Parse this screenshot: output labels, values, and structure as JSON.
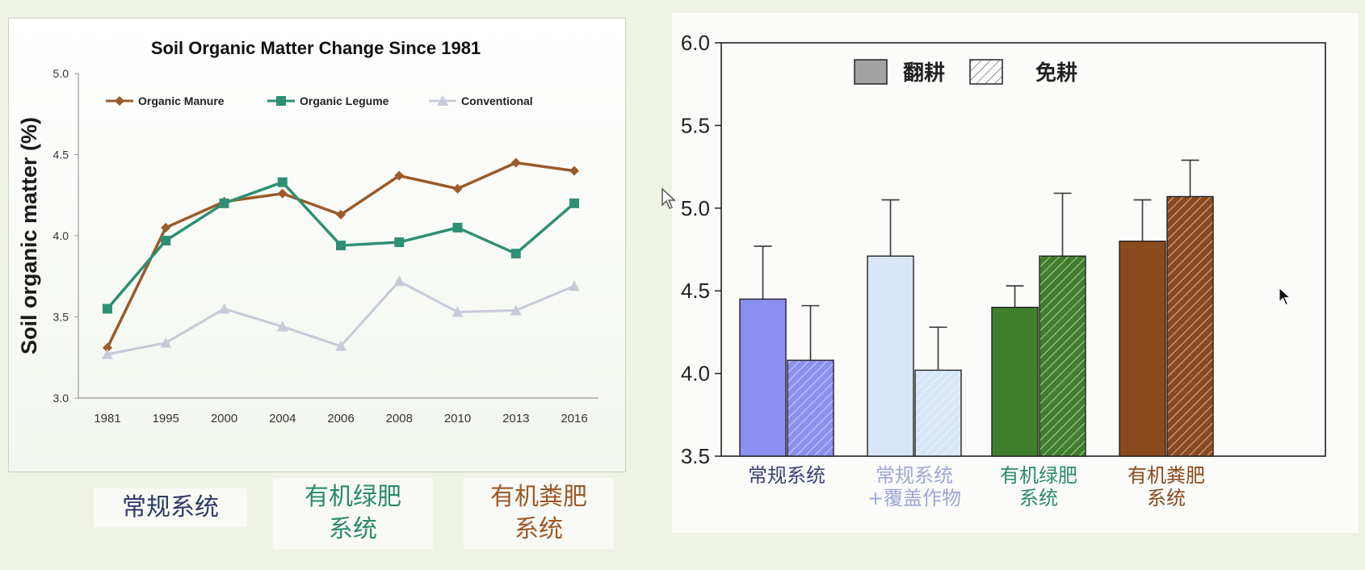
{
  "colors": {
    "manure": "#9b5a2a",
    "legume": "#2f8f74",
    "conventional": "#c8cad8",
    "conv_bar": "#8a8ff0",
    "cover_bar": "#d6e6f7",
    "green_bar": "#3f7f2c",
    "manure_bar": "#8b4a1e"
  },
  "captions": {
    "conventional": "常规系统",
    "legume": "有机绿肥\n系统",
    "manure": "有机粪肥\n系统"
  },
  "chart_data": [
    {
      "type": "line",
      "title": "Soil Organic Matter Change Since 1981",
      "xlabel": "",
      "ylabel": "Soil organic matter (%)",
      "ylim": [
        3.0,
        5.0
      ],
      "yticks": [
        "3.0",
        "3.5",
        "4.0",
        "4.5",
        "5.0"
      ],
      "categories": [
        "1981",
        "1995",
        "2000",
        "2004",
        "2006",
        "2008",
        "2010",
        "2013",
        "2016"
      ],
      "legend": "top",
      "series": [
        {
          "name": "Organic Manure",
          "marker": "diamond",
          "values": [
            3.31,
            4.05,
            4.21,
            4.26,
            4.13,
            4.37,
            4.29,
            4.45,
            4.4
          ]
        },
        {
          "name": "Organic Legume",
          "marker": "square",
          "values": [
            3.55,
            3.97,
            4.2,
            4.33,
            3.94,
            3.96,
            4.05,
            3.89,
            4.2
          ]
        },
        {
          "name": "Conventional",
          "marker": "triangle",
          "values": [
            3.27,
            3.34,
            3.55,
            3.44,
            3.32,
            3.72,
            3.53,
            3.54,
            3.69
          ]
        }
      ]
    },
    {
      "type": "bar",
      "title": "",
      "xlabel": "",
      "ylabel": "Soil organic matter (%)",
      "ylim": [
        3.5,
        6.0
      ],
      "yticks": [
        "3.5",
        "4.0",
        "4.5",
        "5.0",
        "5.5",
        "6.0"
      ],
      "legend": "top-center",
      "categories": [
        "常规系统",
        "常规系统\n+覆盖作物",
        "有机绿肥\n系统",
        "有机粪肥\n系统"
      ],
      "category_colors": [
        "#3a3f7a",
        "#9fa6d8",
        "#2b8a6e",
        "#8b4a1e"
      ],
      "series": [
        {
          "name": "翻耕",
          "pattern": "solid",
          "values": [
            4.45,
            4.71,
            4.4,
            4.8
          ],
          "errors": [
            0.32,
            0.34,
            0.13,
            0.25
          ]
        },
        {
          "name": "免耕",
          "pattern": "hatched",
          "values": [
            4.08,
            4.02,
            4.71,
            5.07
          ],
          "errors": [
            0.33,
            0.26,
            0.38,
            0.22
          ]
        }
      ]
    }
  ]
}
